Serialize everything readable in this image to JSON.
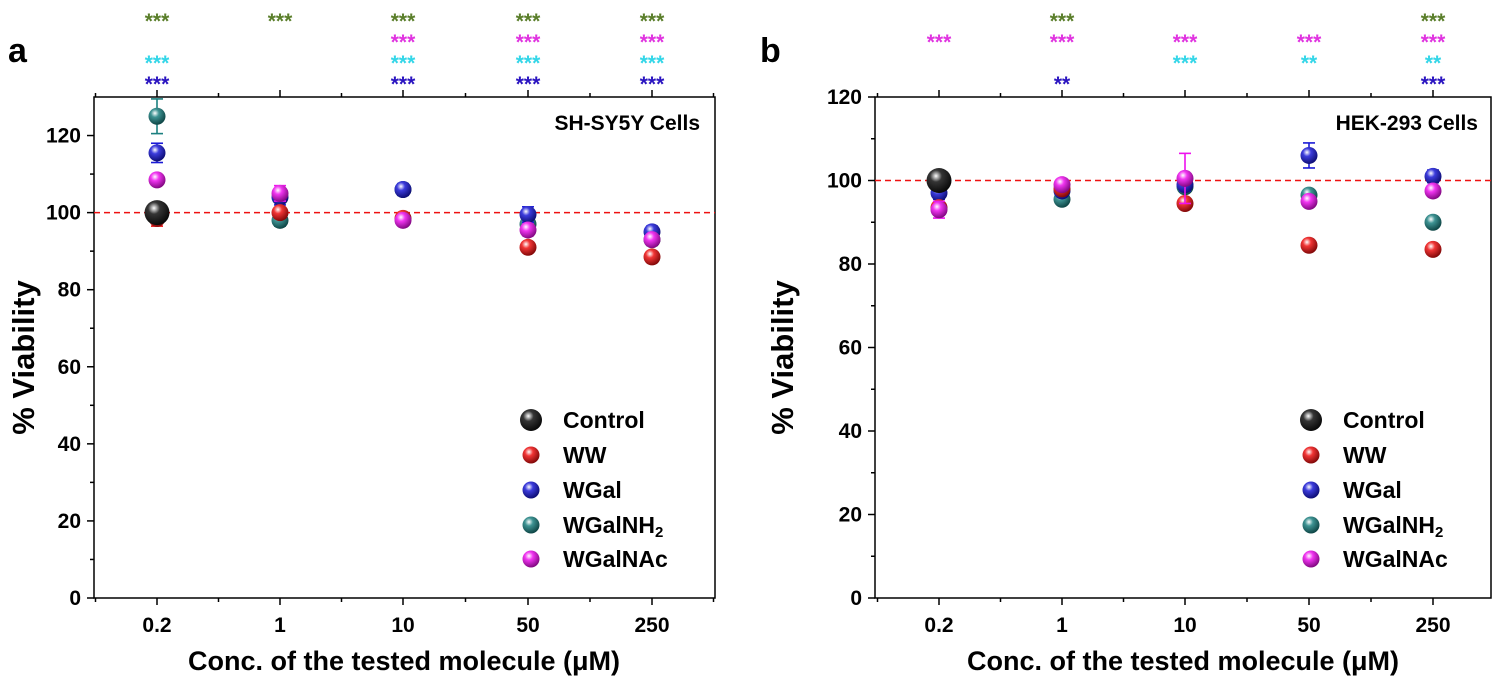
{
  "figure": {
    "colors": {
      "Control": "#111111",
      "WW": "#ee1111",
      "WGal": "#1a1ad6",
      "WGalNH2": "#1c8080",
      "WGalNAc": "#ee11ee",
      "star_green": "#5a7e2a",
      "star_magenta": "#e033e0",
      "star_cyan": "#33d6e8",
      "star_blue": "#2a14c0",
      "reference_line": "#ee1111"
    }
  },
  "chart_data": [
    {
      "panel": "a",
      "type": "scatter",
      "cell_label": "SH-SY5Y Cells",
      "xlabel": "Conc. of the tested molecule (μM)",
      "ylabel": "% Viability",
      "categories": [
        "0.2",
        "1",
        "10",
        "50",
        "250"
      ],
      "ylim": [
        0,
        130
      ],
      "yticks": [
        0,
        20,
        40,
        60,
        80,
        100,
        120
      ],
      "reference_line": 100,
      "legend_position": "bottom-right",
      "series": [
        {
          "name": "Control",
          "key": "Control",
          "values": [
            100,
            null,
            null,
            null,
            null
          ],
          "errors": [
            0,
            null,
            null,
            null,
            null
          ]
        },
        {
          "name": "WW",
          "key": "WW",
          "values": [
            98.5,
            100,
            98.5,
            91,
            88.5
          ],
          "errors": [
            2,
            1,
            1,
            1,
            1
          ]
        },
        {
          "name": "WGal",
          "key": "WGal",
          "values": [
            115.5,
            104,
            106,
            99.5,
            95
          ],
          "errors": [
            2.5,
            2,
            1.5,
            2,
            1.5
          ]
        },
        {
          "name": "WGalNH2",
          "key": "WGalNH2",
          "values": [
            125,
            98,
            106,
            97,
            93
          ],
          "errors": [
            4.5,
            1.5,
            1.5,
            2,
            1.5
          ]
        },
        {
          "name": "WGalNAc",
          "key": "WGalNAc",
          "values": [
            108.5,
            105,
            98,
            95.5,
            93
          ],
          "errors": [
            1,
            2,
            1,
            1.5,
            1
          ]
        }
      ],
      "significance": [
        {
          "category": "0.2",
          "green": "***",
          "magenta": "",
          "cyan": "***",
          "blue": "***"
        },
        {
          "category": "1",
          "green": "***",
          "magenta": "",
          "cyan": "",
          "blue": ""
        },
        {
          "category": "10",
          "green": "***",
          "magenta": "***",
          "cyan": "***",
          "blue": "***"
        },
        {
          "category": "50",
          "green": "***",
          "magenta": "***",
          "cyan": "***",
          "blue": "***"
        },
        {
          "category": "250",
          "green": "***",
          "magenta": "***",
          "cyan": "***",
          "blue": "***"
        }
      ]
    },
    {
      "panel": "b",
      "type": "scatter",
      "cell_label": "HEK-293 Cells",
      "xlabel": "Conc. of the tested molecule (μM)",
      "ylabel": "% Viability",
      "categories": [
        "0.2",
        "1",
        "10",
        "50",
        "250"
      ],
      "ylim": [
        0,
        120
      ],
      "yticks": [
        0,
        20,
        40,
        60,
        80,
        100,
        120
      ],
      "reference_line": 100,
      "legend_position": "bottom-right",
      "series": [
        {
          "name": "Control",
          "key": "Control",
          "values": [
            100,
            null,
            null,
            null,
            null
          ],
          "errors": [
            0,
            null,
            null,
            null,
            null
          ]
        },
        {
          "name": "WW",
          "key": "WW",
          "values": [
            93.5,
            98,
            94.5,
            84.5,
            83.5
          ],
          "errors": [
            1,
            1,
            1,
            1,
            1
          ]
        },
        {
          "name": "WGal",
          "key": "WGal",
          "values": [
            97,
            97.5,
            99,
            106,
            101
          ],
          "errors": [
            1.5,
            1,
            1.5,
            3,
            1.5
          ]
        },
        {
          "name": "WGalNH2",
          "key": "WGalNH2",
          "values": [
            99,
            95.5,
            98.5,
            96.5,
            90
          ],
          "errors": [
            1,
            1,
            1,
            1,
            1
          ]
        },
        {
          "name": "WGalNAc",
          "key": "WGalNAc",
          "values": [
            93,
            99,
            100.5,
            95,
            97.5
          ],
          "errors": [
            2,
            1,
            6,
            1,
            1
          ]
        }
      ],
      "significance": [
        {
          "category": "0.2",
          "green": "",
          "magenta": "***",
          "cyan": "",
          "blue": ""
        },
        {
          "category": "1",
          "green": "***",
          "magenta": "***",
          "cyan": "",
          "blue": "**"
        },
        {
          "category": "10",
          "green": "",
          "magenta": "***",
          "cyan": "***",
          "blue": ""
        },
        {
          "category": "50",
          "green": "",
          "magenta": "***",
          "cyan": "**",
          "blue": ""
        },
        {
          "category": "250",
          "green": "***",
          "magenta": "***",
          "cyan": "**",
          "blue": "***"
        }
      ]
    }
  ]
}
